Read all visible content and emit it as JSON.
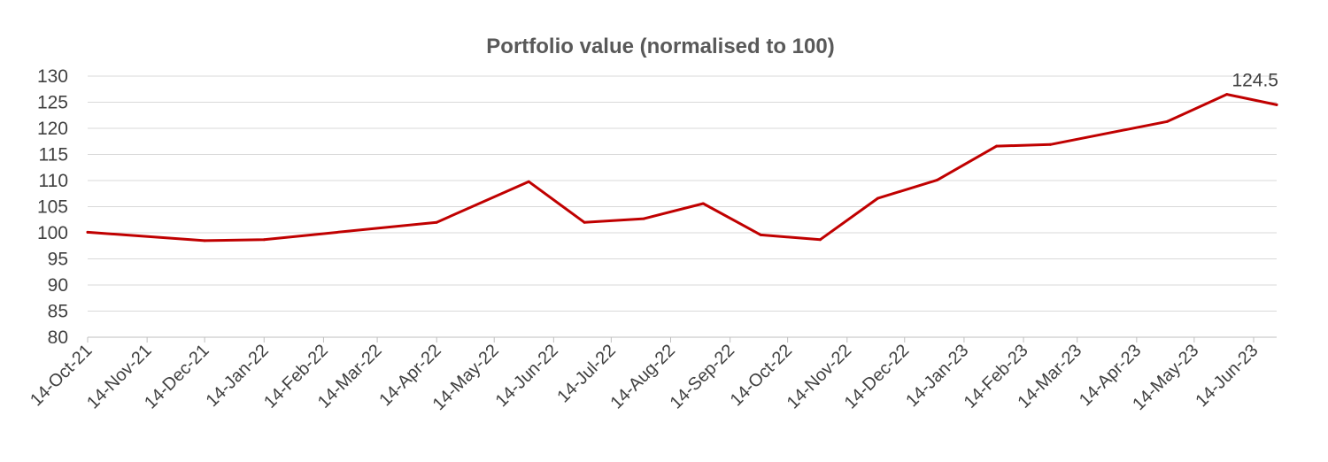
{
  "chart_data": {
    "type": "line",
    "title": "Portfolio value (normalised to 100)",
    "xlabel": "",
    "ylabel": "",
    "ylim": [
      80,
      130
    ],
    "yticks": [
      80,
      85,
      90,
      95,
      100,
      105,
      110,
      115,
      120,
      125,
      130
    ],
    "grid": true,
    "legend": "none",
    "color": "#c00000",
    "x_tick_labels": [
      "14-Oct-21",
      "14-Nov-21",
      "14-Dec-21",
      "14-Jan-22",
      "14-Feb-22",
      "14-Mar-22",
      "14-Apr-22",
      "14-May-22",
      "14-Jun-22",
      "14-Jul-22",
      "14-Aug-22",
      "14-Sep-22",
      "14-Oct-22",
      "14-Nov-22",
      "14-Dec-22",
      "14-Jan-23",
      "14-Feb-23",
      "14-Mar-23",
      "14-Apr-23",
      "14-May-23",
      "14-Jun-23"
    ],
    "xlim": [
      "2021-10-14",
      "2023-06-26"
    ],
    "series": [
      {
        "x": [
          "2021-10-14",
          "2021-12-14",
          "2022-01-14",
          "2022-04-14",
          "2022-06-01",
          "2022-06-30",
          "2022-07-31",
          "2022-08-31",
          "2022-09-30",
          "2022-10-31",
          "2022-11-30",
          "2022-12-31",
          "2023-01-31",
          "2023-02-28",
          "2023-04-30",
          "2023-05-31",
          "2023-06-26"
        ],
        "values": [
          100.1,
          98.5,
          98.7,
          102.0,
          109.8,
          102.0,
          102.7,
          105.6,
          99.6,
          98.7,
          106.6,
          110.1,
          116.6,
          116.9,
          121.3,
          126.5,
          124.5
        ]
      }
    ],
    "annotations": [
      {
        "text": "124.5",
        "x": "2023-06-26",
        "y": 124.5
      }
    ]
  }
}
